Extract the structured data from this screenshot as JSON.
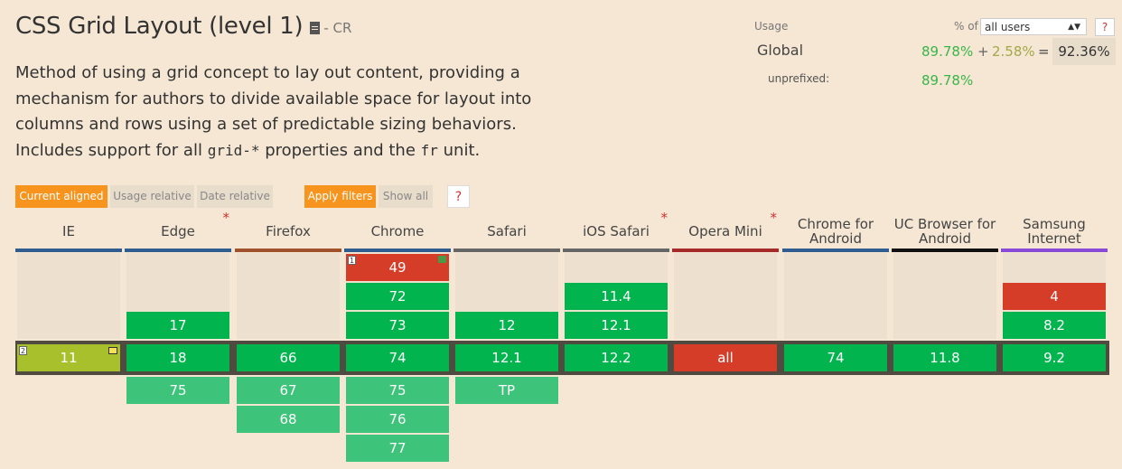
{
  "feature": {
    "title": "CSS Grid Layout (level 1)",
    "status": "- CR",
    "description_parts": [
      "Method of using a grid concept to lay out content, providing a mechanism for authors to divide available space for layout into columns and rows using a set of predictable sizing behaviors. Includes support for all ",
      "grid-*",
      " properties and the ",
      "fr",
      " unit."
    ]
  },
  "usage": {
    "label": "Usage",
    "pct_of_label": "% of",
    "select_value": "all users",
    "help": "?",
    "global_label": "Global",
    "global_full": "89.78%",
    "plus": "+",
    "global_partial": "2.58%",
    "equals": "=",
    "global_total": "92.36%",
    "unprefixed_label": "unprefixed:",
    "unprefixed_value": "89.78%"
  },
  "controls": {
    "current_aligned": "Current aligned",
    "usage_relative": "Usage relative",
    "date_relative": "Date relative",
    "apply_filters": "Apply filters",
    "show_all": "Show all",
    "help": "?"
  },
  "browsers": [
    {
      "name": "IE",
      "bar": "#2f5d8f",
      "star": false
    },
    {
      "name": "Edge",
      "bar": "#2f5d8f",
      "star": true
    },
    {
      "name": "Firefox",
      "bar": "#a0522d",
      "star": false
    },
    {
      "name": "Chrome",
      "bar": "#2f5d8f",
      "star": false
    },
    {
      "name": "Safari",
      "bar": "#666666",
      "star": false
    },
    {
      "name": "iOS Safari",
      "bar": "#666666",
      "star": true
    },
    {
      "name": "Opera Mini",
      "bar": "#a52a2a",
      "star": true
    },
    {
      "name": "Chrome for Android",
      "bar": "#2f5d8f",
      "star": false
    },
    {
      "name": "UC Browser for Android",
      "bar": "#111111",
      "star": false
    },
    {
      "name": "Samsung Internet",
      "bar": "#8a4ad8",
      "star": false
    }
  ],
  "versions": {
    "ie_current": "11",
    "ie_note": "2",
    "edge": [
      "17",
      "18",
      "75"
    ],
    "firefox": [
      "66",
      "67",
      "68"
    ],
    "chrome": [
      "49",
      "72",
      "73",
      "74",
      "75",
      "76",
      "77"
    ],
    "chrome_note": "1",
    "safari": [
      "12",
      "12.1",
      "TP"
    ],
    "ios": [
      "11.4",
      "12.1",
      "12.2"
    ],
    "opera_mini": "all",
    "chrome_android": "74",
    "uc": "11.8",
    "samsung": [
      "4",
      "8.2",
      "9.2"
    ]
  },
  "colors": {
    "supported": "#02b44e",
    "future": "#3dc37a",
    "unsupported": "#d53d29",
    "partial": "#a8c02b",
    "accent": "#f7941d"
  }
}
